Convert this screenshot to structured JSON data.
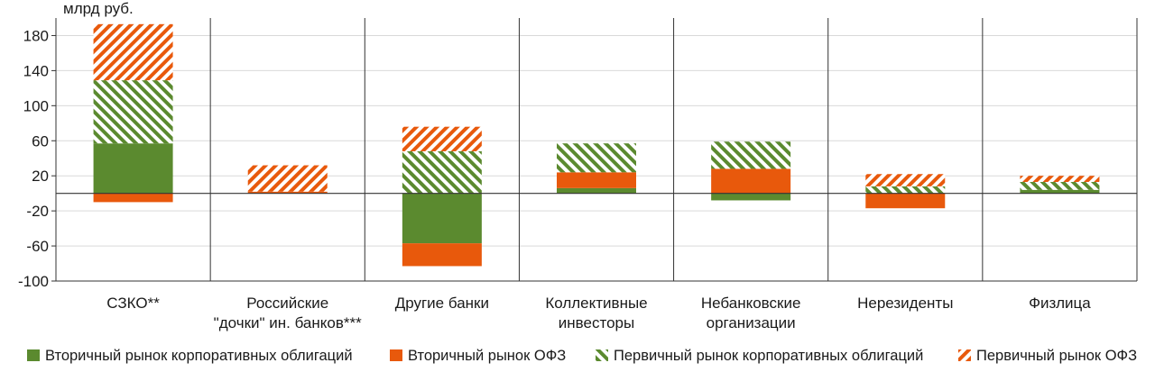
{
  "chart_data": {
    "type": "bar",
    "stacked": true,
    "unit_label": "млрд руб.",
    "categories": [
      [
        "СЗКО**"
      ],
      [
        "Российские",
        "\"дочки\" ин. банков***"
      ],
      [
        "Другие банки"
      ],
      [
        "Коллективные",
        "инвесторы"
      ],
      [
        "Небанковские",
        "организации"
      ],
      [
        "Нерезиденты"
      ],
      [
        "Физлица"
      ]
    ],
    "series": [
      {
        "name": "Вторичный рынок корпоративных облигаций",
        "color": "#5b8a2f",
        "pattern": "solid",
        "values": [
          57,
          0,
          -57,
          6,
          -8,
          0,
          4
        ]
      },
      {
        "name": "Вторичный рынок ОФЗ",
        "color": "#e8590c",
        "pattern": "solid",
        "values": [
          -10,
          2,
          -26,
          18,
          28,
          -17,
          0
        ]
      },
      {
        "name": "Первичный рынок корпоративных облигаций",
        "color": "#5b8a2f",
        "pattern": "hatch",
        "values": [
          72,
          0,
          48,
          33,
          31,
          8,
          9
        ]
      },
      {
        "name": "Первичный рынок ОФЗ",
        "color": "#e8590c",
        "pattern": "hatch",
        "values": [
          64,
          30,
          28,
          0,
          0,
          14,
          7
        ]
      }
    ],
    "yticks": [
      180,
      140,
      100,
      60,
      20,
      -20,
      -60,
      -100
    ],
    "ylim": [
      -100,
      200
    ],
    "grid": true,
    "legend_position": "bottom"
  }
}
